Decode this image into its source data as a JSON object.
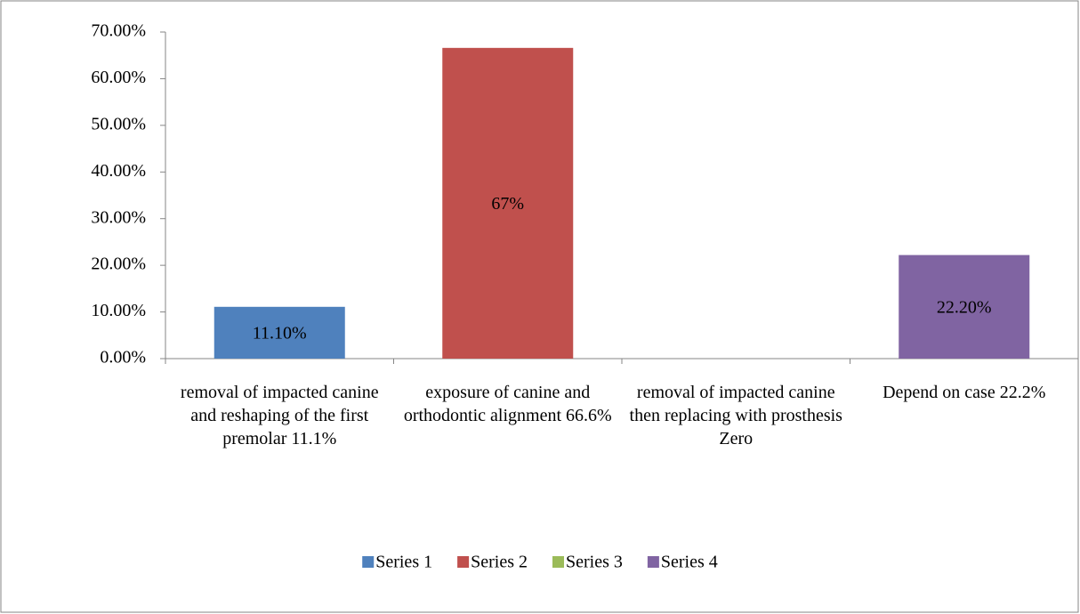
{
  "chart_data": {
    "type": "bar",
    "categories": [
      "removal of impacted canine and reshaping of  the first premolar 11.1%",
      "exposure of canine and orthodontic alignment 66.6%",
      "removal of impacted canine then replacing with prosthesis Zero",
      "Depend on case 22.2%"
    ],
    "series": [
      {
        "name": "Series 1",
        "color": "#4f81bd",
        "values": [
          11.1,
          null,
          null,
          null
        ],
        "value_labels": [
          "11.10%",
          null,
          null,
          null
        ]
      },
      {
        "name": "Series 2",
        "color": "#c0504d",
        "values": [
          null,
          66.6,
          null,
          null
        ],
        "value_labels": [
          null,
          "67%",
          null,
          null
        ]
      },
      {
        "name": "Series 3",
        "color": "#9bbb59",
        "values": [
          null,
          null,
          0,
          null
        ]
      },
      {
        "name": "Series 4",
        "color": "#8064a2",
        "values": [
          null,
          null,
          null,
          22.2
        ],
        "value_labels": [
          null,
          null,
          null,
          "22.20%"
        ]
      }
    ],
    "ylim": [
      0,
      70
    ],
    "yticks": [
      {
        "value": 0,
        "label": "0.00%"
      },
      {
        "value": 10,
        "label": "10.00%"
      },
      {
        "value": 20,
        "label": "20.00%"
      },
      {
        "value": 30,
        "label": "30.00%"
      },
      {
        "value": 40,
        "label": "40.00%"
      },
      {
        "value": 50,
        "label": "50.00%"
      },
      {
        "value": 60,
        "label": "60.00%"
      },
      {
        "value": 70,
        "label": "70.00%"
      }
    ],
    "grid": false,
    "legend": "bottom"
  }
}
